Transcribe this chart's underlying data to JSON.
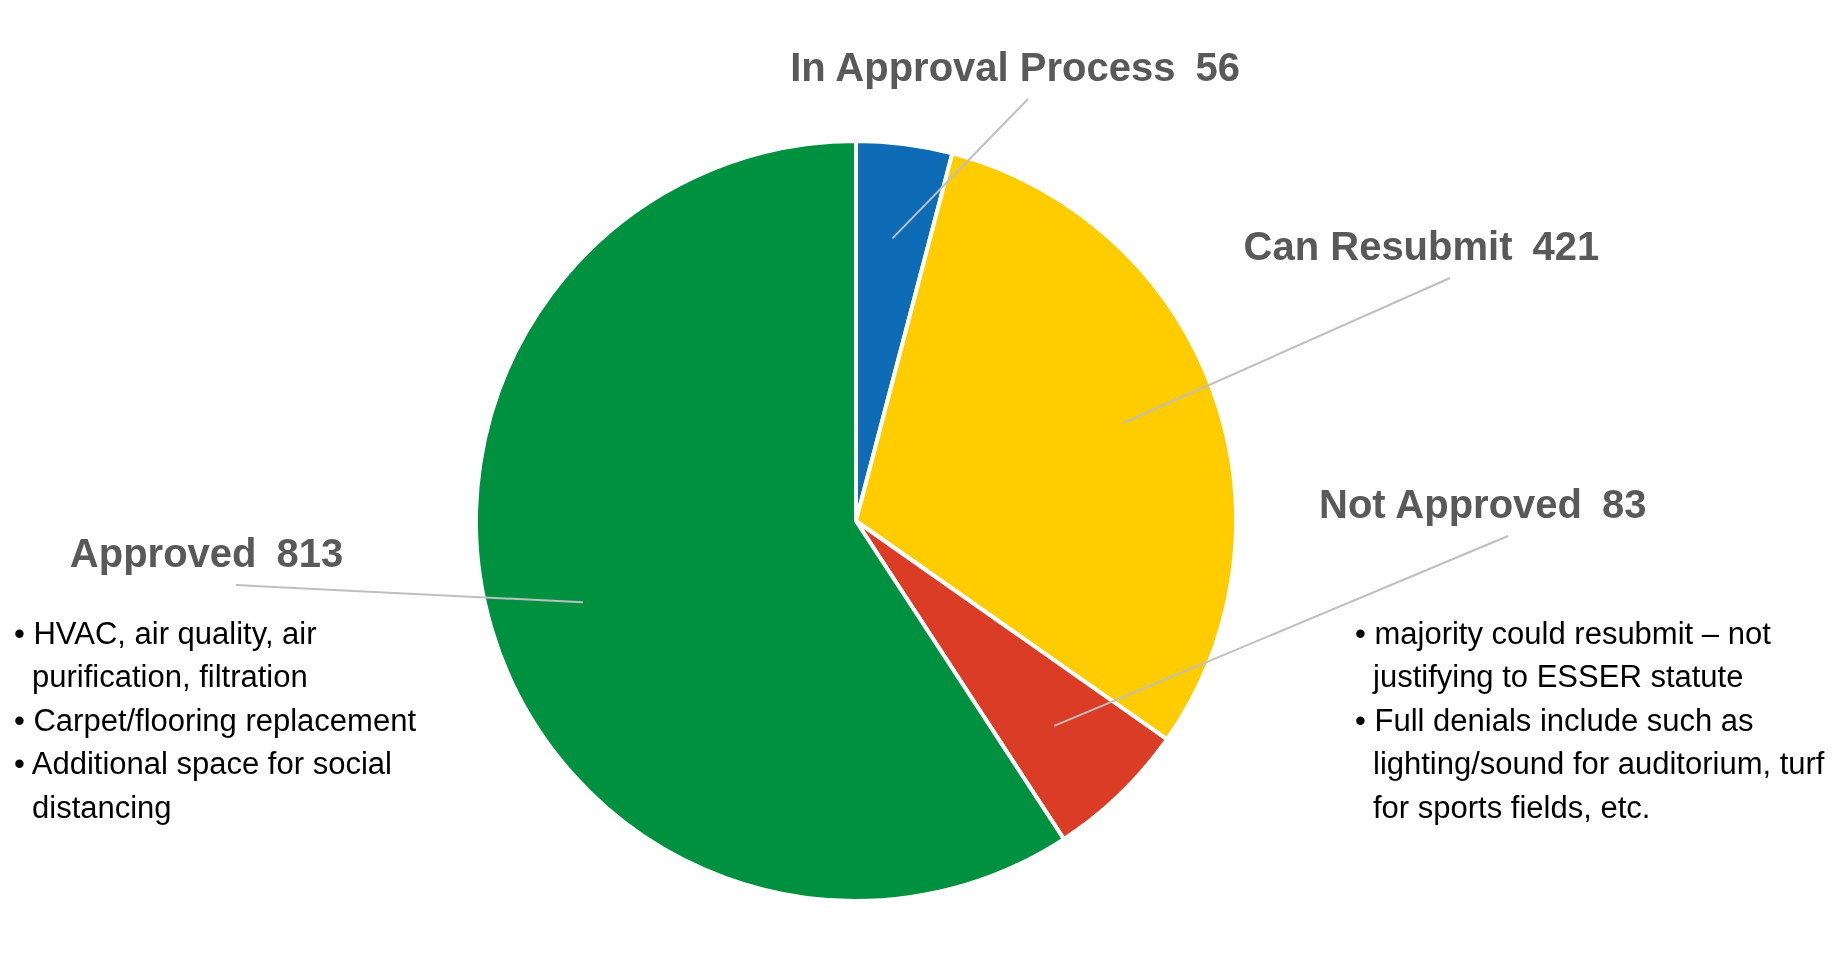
{
  "chart_data": {
    "type": "pie",
    "categories": [
      "In Approval Process",
      "Can Resubmit",
      "Not Approved",
      "Approved"
    ],
    "values": [
      56,
      421,
      83,
      813
    ],
    "colors": [
      "#0e6bb6",
      "#ffcc00",
      "#db3c25",
      "#009140"
    ],
    "data_labels": true,
    "annotations": [
      {
        "text": "• HVAC, air quality, air purification, filtration",
        "x": "Approved"
      },
      {
        "text": "• Carpet/flooring replacement",
        "x": "Approved"
      },
      {
        "text": "• Additional space for social distancing",
        "x": "Approved"
      },
      {
        "text": "• majority could resubmit – not justifying to ESSER statute",
        "x": "Not Approved"
      },
      {
        "text": "• Full denials include such as lighting/sound for auditorium, turf for sports fields, etc.",
        "x": "Not Approved"
      }
    ]
  }
}
